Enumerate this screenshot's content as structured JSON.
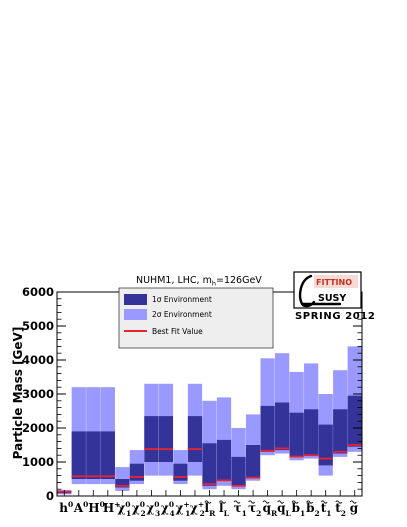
{
  "chart_data": {
    "type": "bar",
    "title": "NUHM1, LHC, m",
    "title_sub": "h",
    "title_suffix": "=126GeV",
    "ylabel": "Particle Mass [GeV]",
    "ylim": [
      0,
      6000
    ],
    "yticks": [
      "0",
      "1000",
      "2000",
      "3000",
      "4000",
      "5000",
      "6000"
    ],
    "yticks_values": [
      0,
      1000,
      2000,
      3000,
      4000,
      5000,
      6000
    ],
    "categories": [
      {
        "base": "h",
        "sup": "0",
        "sub": "",
        "tilde": false
      },
      {
        "base": "A",
        "sup": "0",
        "sub": "",
        "tilde": false
      },
      {
        "base": "H",
        "sup": "0",
        "sub": "",
        "tilde": false
      },
      {
        "base": "H",
        "sup": "+",
        "sub": "",
        "tilde": false
      },
      {
        "base": "χ",
        "sup": "0",
        "sub": "1",
        "tilde": false
      },
      {
        "base": "χ",
        "sup": "0",
        "sub": "2",
        "tilde": false
      },
      {
        "base": "χ",
        "sup": "0",
        "sub": "3",
        "tilde": false
      },
      {
        "base": "χ",
        "sup": "0",
        "sub": "4",
        "tilde": false
      },
      {
        "base": "χ",
        "sup": "+",
        "sub": "1",
        "tilde": false
      },
      {
        "base": "χ",
        "sup": "+",
        "sub": "2",
        "tilde": false
      },
      {
        "base": "l",
        "sup": "",
        "sub": "R",
        "tilde": true
      },
      {
        "base": "l",
        "sup": "",
        "sub": "L",
        "tilde": true
      },
      {
        "base": "τ",
        "sup": "",
        "sub": "1",
        "tilde": true
      },
      {
        "base": "τ",
        "sup": "",
        "sub": "2",
        "tilde": true
      },
      {
        "base": "q",
        "sup": "",
        "sub": "R",
        "tilde": true
      },
      {
        "base": "q",
        "sup": "",
        "sub": "L",
        "tilde": true
      },
      {
        "base": "b",
        "sup": "",
        "sub": "1",
        "tilde": true
      },
      {
        "base": "b",
        "sup": "",
        "sub": "2",
        "tilde": true
      },
      {
        "base": "t",
        "sup": "",
        "sub": "1",
        "tilde": true
      },
      {
        "base": "t",
        "sup": "",
        "sub": "2",
        "tilde": true
      },
      {
        "base": "g",
        "sup": "",
        "sub": "",
        "tilde": true
      }
    ],
    "series": [
      {
        "name": "1σ Environment",
        "color": "#33339a",
        "ranges": [
          [
            80,
            150
          ],
          [
            500,
            1900
          ],
          [
            500,
            1900
          ],
          [
            500,
            1900
          ],
          [
            250,
            500
          ],
          [
            450,
            950
          ],
          [
            1000,
            2350
          ],
          [
            1000,
            2350
          ],
          [
            450,
            950
          ],
          [
            1000,
            2350
          ],
          [
            300,
            1550
          ],
          [
            450,
            1650
          ],
          [
            300,
            1150
          ],
          [
            550,
            1500
          ],
          [
            1300,
            2650
          ],
          [
            1350,
            2750
          ],
          [
            1150,
            2450
          ],
          [
            1200,
            2550
          ],
          [
            900,
            2100
          ],
          [
            1250,
            2550
          ],
          [
            1450,
            2950
          ]
        ]
      },
      {
        "name": "2σ Environment",
        "color": "#9999ff",
        "ranges": [
          [
            50,
            180
          ],
          [
            350,
            3200
          ],
          [
            350,
            3200
          ],
          [
            350,
            3200
          ],
          [
            150,
            850
          ],
          [
            350,
            1350
          ],
          [
            600,
            3300
          ],
          [
            600,
            3300
          ],
          [
            350,
            1350
          ],
          [
            600,
            3300
          ],
          [
            200,
            2800
          ],
          [
            300,
            2900
          ],
          [
            200,
            2000
          ],
          [
            450,
            2400
          ],
          [
            1200,
            4050
          ],
          [
            1250,
            4200
          ],
          [
            1050,
            3650
          ],
          [
            1100,
            3900
          ],
          [
            600,
            3000
          ],
          [
            1150,
            3700
          ],
          [
            1300,
            4400
          ]
        ]
      },
      {
        "name": "Best Fit Value",
        "color": "#e8232d",
        "values": [
          126,
          580,
          580,
          580,
          300,
          560,
          1380,
          1380,
          560,
          1380,
          350,
          460,
          300,
          540,
          1330,
          1400,
          1160,
          1200,
          1100,
          1300,
          1500
        ]
      }
    ],
    "grid": false,
    "legend_position": "top-left"
  },
  "logo": {
    "brand": "FITTINO",
    "susy": "SUSY",
    "season": "SPRING 2012"
  }
}
